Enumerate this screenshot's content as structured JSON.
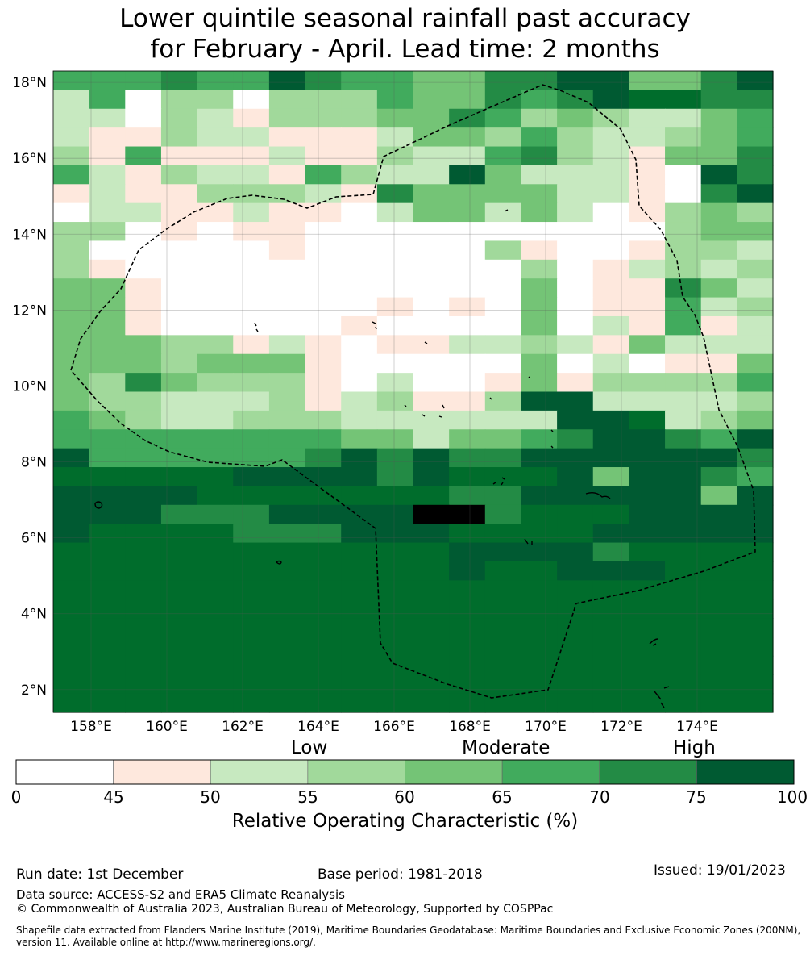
{
  "title": {
    "line1": "Lower quintile seasonal rainfall past accuracy",
    "line2": "for February - April. Lead time: 2 months"
  },
  "map": {
    "lon_range": [
      157,
      176
    ],
    "lat_range": [
      1.4,
      18.3
    ],
    "lat_ticks": [
      "18°N",
      "16°N",
      "14°N",
      "12°N",
      "10°N",
      "8°N",
      "6°N",
      "4°N",
      "2°N"
    ],
    "lon_ticks": [
      "158°E",
      "160°E",
      "162°E",
      "164°E",
      "166°E",
      "168°E",
      "170°E",
      "172°E",
      "174°E"
    ],
    "grid_rows": [
      "55565576554466774467",
      "25033033354465678866",
      "22032133344653432245",
      "21132211124435322345",
      "31511121132256321446",
      "52132215322742221076",
      "12113332164444221067",
      "02211211024424201343",
      "33010110000000000344",
      "30000010000031001332",
      "31000000000003012323",
      "44100000000004011642",
      "44100000010104011523",
      "44100000100004021512",
      "44433121011223214222",
      "44434441000004020114",
      "43643331020014133335",
      "43322231231137722223",
      "54322333222222778234",
      "55555555442445677657",
      "75555556767667777776",
      "88888777767888747765",
      "77778888888667777747",
      "77766677779968887777",
      "78888666777888877777",
      "88888888888777768888",
      "88888888888788777888",
      "88888888888888888888",
      "88888888888888888888",
      "88888888888888888888",
      "88888888888888888888",
      "88888888888888888888",
      "88888888888888888888",
      "88888888888888888888"
    ]
  },
  "colorbar": {
    "category_labels": [
      "Low",
      "Moderate",
      "High"
    ],
    "ticks": [
      "0",
      "45",
      "50",
      "55",
      "60",
      "65",
      "70",
      "75",
      "100"
    ],
    "colors": [
      "#ffffff",
      "#fee8dd",
      "#c7e9c0",
      "#a1d99b",
      "#74c476",
      "#41ab5d",
      "#238b45",
      "#005a32",
      "#006d2c"
    ],
    "title": "Relative Operating Characteristic (%)"
  },
  "footer": {
    "run_date": "Run date: 1st December",
    "base_period": "Base period: 1981-2018",
    "issued": "Issued: 19/01/2023",
    "data_source": "Data source: ACCESS-S2 and ERA5 Climate Reanalysis",
    "copyright": "© Commonwealth of Australia 2023, Australian Bureau of Meteorology, Supported by COSPPac",
    "shapefile_note": "Shapefile data extracted from Flanders Marine Institute (2019), Maritime Boundaries Geodatabase: Maritime Boundaries and Exclusive Economic Zones (200NM), version 11. Available online at http://www.marineregions.org/."
  }
}
